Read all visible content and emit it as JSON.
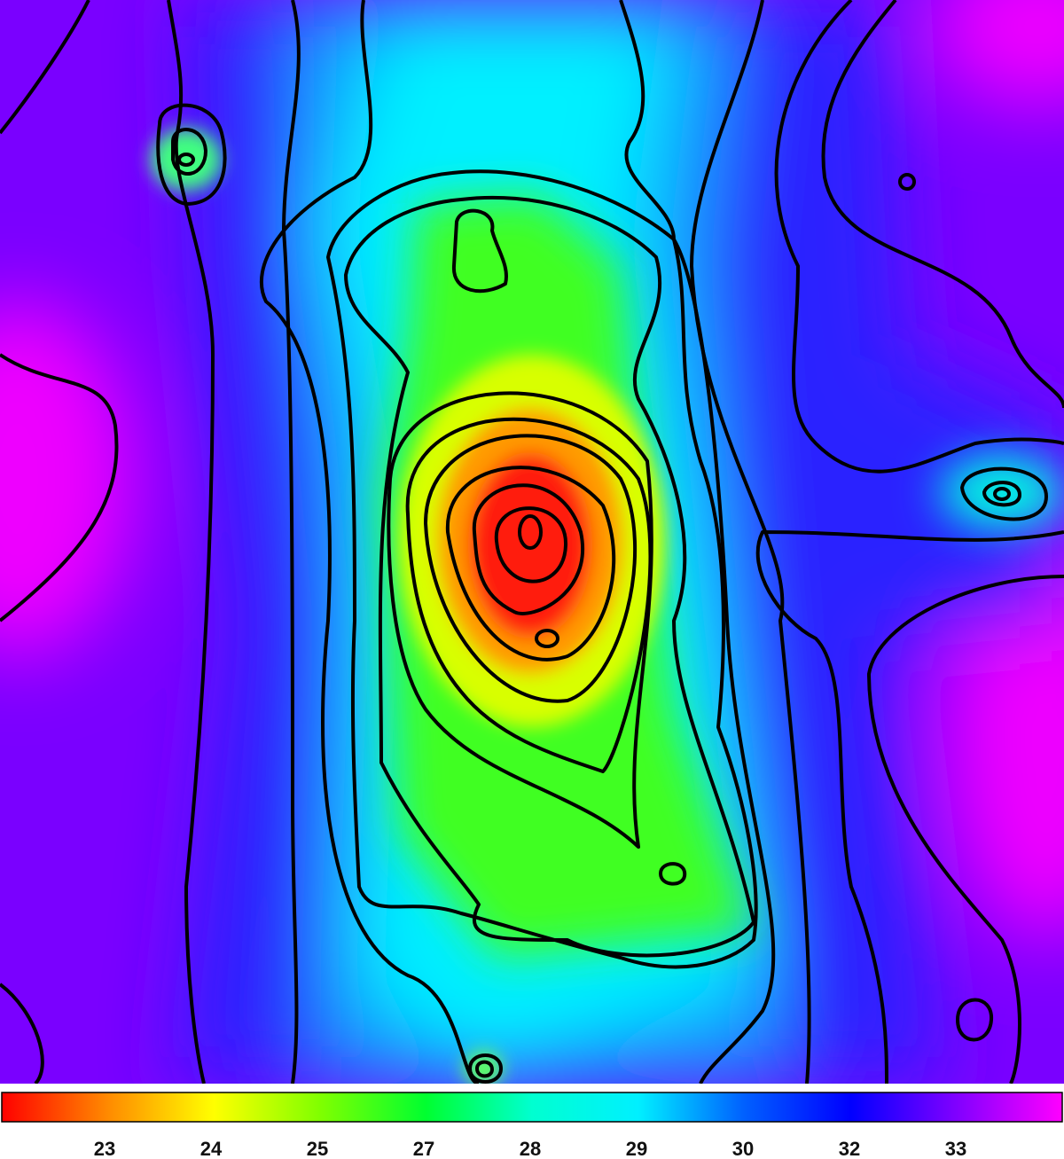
{
  "chart_data": {
    "type": "image-colorbar",
    "colorbar": {
      "ticks": [
        23,
        24,
        25,
        27,
        28,
        29,
        30,
        32,
        33
      ],
      "colors": [
        "#ff0000",
        "#ff8a00",
        "#ffff00",
        "#80ff00",
        "#00ff30",
        "#00ffd0",
        "#00f0ff",
        "#0060ff",
        "#0000ff",
        "#8000ff",
        "#ff00ff"
      ]
    }
  }
}
